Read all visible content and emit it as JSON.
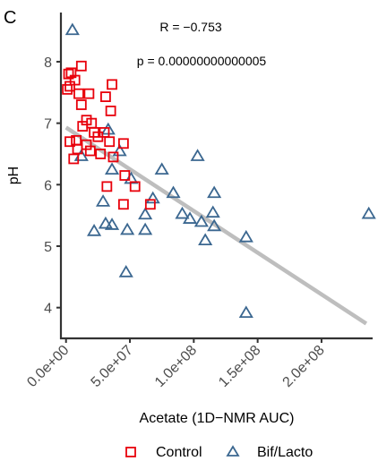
{
  "panel_tag": "C",
  "chart_data": {
    "type": "scatter",
    "title": "",
    "xlabel": "Acetate (1D−NMR AUC)",
    "ylabel": "pH",
    "xlim": [
      -4000000,
      240000000
    ],
    "ylim": [
      3.5,
      8.8
    ],
    "x_ticks": [
      {
        "value": 0,
        "label": "0.0e+00"
      },
      {
        "value": 50000000,
        "label": "5.0e+07"
      },
      {
        "value": 100000000,
        "label": "1.0e+08"
      },
      {
        "value": 150000000,
        "label": "1.5e+08"
      },
      {
        "value": 200000000,
        "label": "2.0e+08"
      }
    ],
    "y_ticks": [
      {
        "value": 4,
        "label": "4"
      },
      {
        "value": 5,
        "label": "5"
      },
      {
        "value": 6,
        "label": "6"
      },
      {
        "value": 7,
        "label": "7"
      },
      {
        "value": 8,
        "label": "8"
      }
    ],
    "annotations": [
      {
        "text": "R =  −0.753"
      },
      {
        "text": "p = 0.00000000000005"
      }
    ],
    "fit_line": {
      "color": "#bebebe",
      "x": [
        0,
        235000000
      ],
      "y": [
        6.93,
        3.74
      ]
    },
    "legend_position": "bottom",
    "grid": false,
    "series": [
      {
        "name": "Control",
        "marker": "square-open",
        "color": "#e8000b",
        "points": [
          [
            2000000,
            7.8
          ],
          [
            4000000,
            7.82
          ],
          [
            3000000,
            7.6
          ],
          [
            7000000,
            7.7
          ],
          [
            1000000,
            7.55
          ],
          [
            12000000,
            7.93
          ],
          [
            10000000,
            7.48
          ],
          [
            18000000,
            7.48
          ],
          [
            12000000,
            7.3
          ],
          [
            36000000,
            7.63
          ],
          [
            31000000,
            7.43
          ],
          [
            35000000,
            7.2
          ],
          [
            16000000,
            7.05
          ],
          [
            20000000,
            7.0
          ],
          [
            13000000,
            6.95
          ],
          [
            22000000,
            6.85
          ],
          [
            30000000,
            6.85
          ],
          [
            25000000,
            6.78
          ],
          [
            34000000,
            6.7
          ],
          [
            45000000,
            6.67
          ],
          [
            3000000,
            6.7
          ],
          [
            8000000,
            6.72
          ],
          [
            16000000,
            6.65
          ],
          [
            9000000,
            6.58
          ],
          [
            19000000,
            6.55
          ],
          [
            27000000,
            6.5
          ],
          [
            6000000,
            6.42
          ],
          [
            37000000,
            6.45
          ],
          [
            46000000,
            6.15
          ],
          [
            32000000,
            5.97
          ],
          [
            54000000,
            5.97
          ],
          [
            45000000,
            5.68
          ],
          [
            66000000,
            5.68
          ]
        ]
      },
      {
        "name": "Bif/Lacto",
        "marker": "triangle-open",
        "color": "#3b6790",
        "points": [
          [
            5000000,
            8.52
          ],
          [
            33000000,
            6.9
          ],
          [
            12000000,
            6.47
          ],
          [
            42000000,
            6.55
          ],
          [
            36000000,
            6.25
          ],
          [
            51000000,
            6.1
          ],
          [
            75000000,
            6.25
          ],
          [
            103000000,
            6.47
          ],
          [
            29000000,
            5.73
          ],
          [
            68000000,
            5.78
          ],
          [
            62000000,
            5.52
          ],
          [
            84000000,
            5.87
          ],
          [
            116000000,
            5.87
          ],
          [
            31000000,
            5.37
          ],
          [
            36000000,
            5.35
          ],
          [
            22000000,
            5.25
          ],
          [
            48000000,
            5.27
          ],
          [
            62000000,
            5.27
          ],
          [
            91000000,
            5.53
          ],
          [
            97000000,
            5.45
          ],
          [
            106000000,
            5.4
          ],
          [
            115000000,
            5.55
          ],
          [
            116000000,
            5.33
          ],
          [
            109000000,
            5.1
          ],
          [
            141000000,
            5.15
          ],
          [
            47000000,
            4.58
          ],
          [
            141000000,
            3.92
          ],
          [
            237000000,
            5.53
          ]
        ]
      }
    ]
  }
}
